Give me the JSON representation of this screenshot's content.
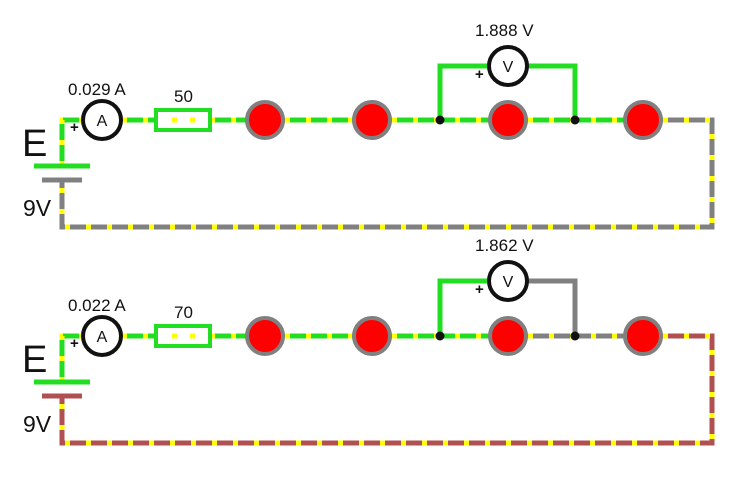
{
  "colors": {
    "active_wire": "#22dd22",
    "idle_wire": "#808080",
    "return_wire_2": "#b05050",
    "dash": "#ffff00",
    "bulb_fill": "#ff0000",
    "bulb_ring": "#808080",
    "meter_ring": "#111111",
    "node": "#111111"
  },
  "circuits": [
    {
      "battery_label": "E",
      "battery_voltage": "9V",
      "ammeter_symbol": "A",
      "ammeter_reading": "0.029 A",
      "resistor_value": "50",
      "voltmeter_symbol": "V",
      "voltmeter_reading": "1.888 V",
      "plus": "+"
    },
    {
      "battery_label": "E",
      "battery_voltage": "9V",
      "ammeter_symbol": "A",
      "ammeter_reading": "0.022 A",
      "resistor_value": "70",
      "voltmeter_symbol": "V",
      "voltmeter_reading": "1.862 V",
      "plus": "+"
    }
  ]
}
